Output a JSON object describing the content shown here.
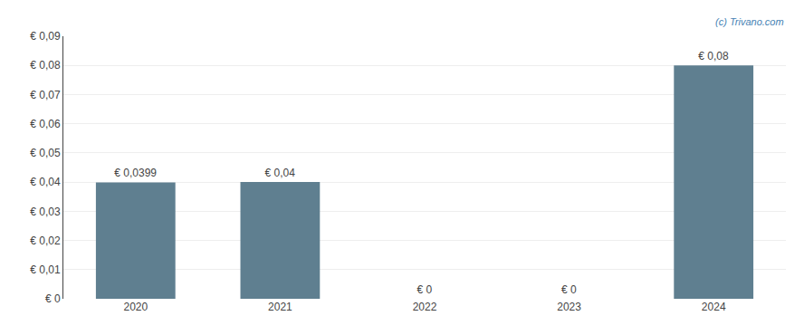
{
  "chart_data": {
    "type": "bar",
    "categories": [
      "2020",
      "2021",
      "2022",
      "2023",
      "2024"
    ],
    "values": [
      0.0399,
      0.04,
      0.0,
      0.0,
      0.08
    ],
    "value_labels": [
      "€ 0,0399",
      "€ 0,04",
      "€ 0",
      "€ 0",
      "€ 0,08"
    ],
    "data_labels": true,
    "color": "#5f7f90",
    "ylim": [
      0,
      0.09
    ],
    "yticks": [
      {
        "value": 0,
        "label": "€ 0"
      },
      {
        "value": 0.01,
        "label": "€ 0,01"
      },
      {
        "value": 0.02,
        "label": "€ 0,02"
      },
      {
        "value": 0.03,
        "label": "€ 0,03"
      },
      {
        "value": 0.04,
        "label": "€ 0,04"
      },
      {
        "value": 0.05,
        "label": "€ 0,05"
      },
      {
        "value": 0.06,
        "label": "€ 0,06"
      },
      {
        "value": 0.07,
        "label": "€ 0,07"
      },
      {
        "value": 0.08,
        "label": "€ 0,08"
      },
      {
        "value": 0.09,
        "label": "€ 0,09"
      }
    ],
    "grid": true,
    "annotations": [
      "(c) Trivano.com"
    ]
  }
}
